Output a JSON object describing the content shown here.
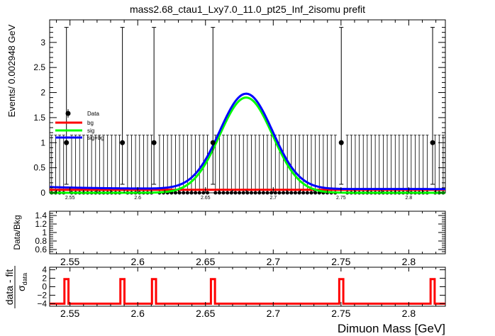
{
  "title": "mass2.68_ctau1_Lxy7.0_11.0_pt25_Inf_2isomu   prefit",
  "colors": {
    "data": "#000000",
    "bg": "#ff0000",
    "sig": "#00ff00",
    "sigbg": "#0000ff",
    "pull": "#ff0000"
  },
  "chart_data": [
    {
      "type": "line",
      "panel": "main",
      "title": "mass2.68_ctau1_Lxy7.0_11.0_pt25_Inf_2isomu   prefit",
      "ylabel": "Events/ 0.002948 GeV",
      "xlim": [
        2.535,
        2.827
      ],
      "ylim": [
        0,
        3.45
      ],
      "xticks": [
        2.55,
        2.6,
        2.65,
        2.7,
        2.75,
        2.8
      ],
      "xtick_labels": [
        "2.55",
        "2.6",
        "2.65",
        "2.7",
        "2.75",
        "2.8"
      ],
      "yticks": [
        0,
        0.5,
        1,
        1.5,
        2,
        2.5,
        3
      ],
      "ytick_labels": [
        "0",
        "0.5",
        "1",
        "1.5",
        "2",
        "2.5",
        "3"
      ],
      "legend": [
        "Data",
        "bg",
        "sig",
        "sig+bg"
      ],
      "data_points": [
        {
          "x": 2.5474,
          "y": 1,
          "err_up": 2.3,
          "err_down": 0.83
        },
        {
          "x": 2.5887,
          "y": 1,
          "err_up": 2.3,
          "err_down": 0.83
        },
        {
          "x": 2.612,
          "y": 1,
          "err_up": 2.3,
          "err_down": 0.83
        },
        {
          "x": 2.6555,
          "y": 1,
          "err_up": 2.3,
          "err_down": 0.83
        },
        {
          "x": 2.7502,
          "y": 1,
          "err_up": 2.3,
          "err_down": 0.83
        },
        {
          "x": 2.8176,
          "y": 1,
          "err_up": 2.3,
          "err_down": 0.83
        }
      ],
      "empty_bin_error_up": 1.15,
      "bin_width": 0.002948,
      "series": [
        {
          "name": "bg",
          "model": "constant",
          "level": 0.06
        },
        {
          "name": "sig",
          "model": "gaussian",
          "mean": 2.68,
          "sigma": 0.0195,
          "amplitude": 1.9
        },
        {
          "name": "sig+bg",
          "model": "gaussian+constant",
          "mean": 2.68,
          "sigma": 0.0195,
          "amplitude": 1.9,
          "level": 0.075
        }
      ]
    },
    {
      "type": "scatter",
      "panel": "ratio",
      "ylabel": "Data/Bkg",
      "xlim": [
        2.535,
        2.827
      ],
      "ylim": [
        0.5,
        1.5
      ],
      "xticks": [
        2.55,
        2.6,
        2.65,
        2.7,
        2.75,
        2.8
      ],
      "xtick_labels": [
        "2.55",
        "2.6",
        "2.65",
        "2.7",
        "2.75",
        "2.8"
      ],
      "yticks": [
        0.6,
        0.8,
        1.0,
        1.2,
        1.4
      ],
      "ytick_labels": [
        "0.6",
        "0.8",
        "1",
        "1.2",
        "1.4"
      ],
      "values": []
    },
    {
      "type": "line",
      "panel": "pull",
      "ylabel_main": "data - fit",
      "ylabel_den": "σ",
      "ylabel_sub": "data",
      "xlabel": "Dimuon Mass [GeV]",
      "xlim": [
        2.535,
        2.827
      ],
      "ylim": [
        -4.6,
        4.6
      ],
      "xticks": [
        2.55,
        2.6,
        2.65,
        2.7,
        2.75,
        2.8
      ],
      "xtick_labels": [
        "2.55",
        "2.6",
        "2.65",
        "2.7",
        "2.75",
        "2.8"
      ],
      "yticks": [
        -4,
        -2,
        0,
        2,
        4
      ],
      "ytick_labels": [
        "−4",
        "−2",
        "0",
        "2",
        "4"
      ],
      "baseline": -4,
      "spikes": [
        {
          "x": 2.5474,
          "y": 1.8
        },
        {
          "x": 2.5887,
          "y": 1.8
        },
        {
          "x": 2.612,
          "y": 1.8
        },
        {
          "x": 2.6555,
          "y": 1.8
        },
        {
          "x": 2.7502,
          "y": 1.8
        },
        {
          "x": 2.8176,
          "y": 1.8
        }
      ]
    }
  ]
}
